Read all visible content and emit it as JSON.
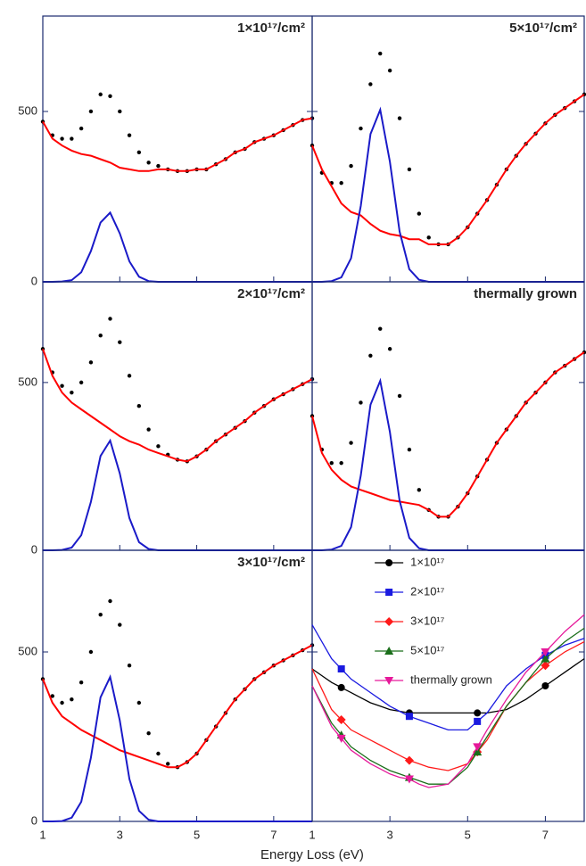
{
  "xlabel": "Energy Loss (eV)",
  "chart_data": [
    {
      "type": "line",
      "title": "1×10¹⁷/cm²",
      "x": [
        1,
        1.25,
        1.5,
        1.75,
        2,
        2.25,
        2.5,
        2.75,
        3,
        3.25,
        3.5,
        3.75,
        4,
        4.25,
        4.5,
        4.75,
        5,
        5.25,
        5.5,
        5.75,
        6,
        6.25,
        6.5,
        6.75,
        7,
        7.25,
        7.5,
        7.75,
        8
      ],
      "xlim": [
        1,
        8
      ],
      "xticks": [
        1,
        3,
        5,
        7
      ],
      "ylim": [
        0,
        780
      ],
      "yticks": [
        0,
        500
      ],
      "xtick_labels": false,
      "ytick_labels": true,
      "series": [
        {
          "color": "#000000",
          "style": "dots",
          "values": [
            470,
            430,
            420,
            420,
            450,
            500,
            550,
            545,
            500,
            430,
            380,
            350,
            340,
            330,
            325,
            325,
            330,
            330,
            345,
            360,
            380,
            390,
            410,
            420,
            430,
            445,
            460,
            475,
            480
          ]
        },
        {
          "color": "#ff0000",
          "style": "line",
          "values": [
            470,
            420,
            400,
            385,
            375,
            370,
            360,
            350,
            335,
            330,
            325,
            325,
            330,
            330,
            325,
            325,
            330,
            330,
            345,
            360,
            380,
            390,
            410,
            420,
            430,
            445,
            460,
            475,
            480
          ]
        },
        {
          "color": "#1a1ac8",
          "style": "line",
          "values": [
            0,
            0,
            1,
            5,
            28,
            90,
            174,
            203,
            142,
            60,
            15,
            2,
            0,
            0,
            0,
            0,
            0,
            0,
            0,
            0,
            0,
            0,
            0,
            0,
            0,
            0,
            0,
            0,
            0
          ]
        }
      ]
    },
    {
      "type": "line",
      "title": "5×10¹⁷/cm²",
      "x": [
        1,
        1.25,
        1.5,
        1.75,
        2,
        2.25,
        2.5,
        2.75,
        3,
        3.25,
        3.5,
        3.75,
        4,
        4.25,
        4.5,
        4.75,
        5,
        5.25,
        5.5,
        5.75,
        6,
        6.25,
        6.5,
        6.75,
        7,
        7.25,
        7.5,
        7.75,
        8
      ],
      "xlim": [
        1,
        8
      ],
      "xticks": [
        1,
        3,
        5,
        7
      ],
      "ylim": [
        0,
        780
      ],
      "yticks": [
        0,
        500
      ],
      "xtick_labels": false,
      "ytick_labels": false,
      "series": [
        {
          "color": "#000000",
          "style": "dots",
          "values": [
            400,
            320,
            290,
            290,
            340,
            450,
            580,
            670,
            620,
            480,
            330,
            200,
            130,
            110,
            110,
            130,
            160,
            200,
            240,
            285,
            330,
            370,
            405,
            435,
            465,
            490,
            510,
            530,
            550
          ]
        },
        {
          "color": "#ff0000",
          "style": "line",
          "values": [
            400,
            330,
            280,
            230,
            205,
            195,
            170,
            150,
            140,
            135,
            125,
            125,
            110,
            110,
            110,
            130,
            160,
            200,
            240,
            285,
            330,
            370,
            405,
            435,
            465,
            490,
            510,
            530,
            550
          ]
        },
        {
          "color": "#1a1ac8",
          "style": "line",
          "values": [
            0,
            0,
            2,
            13,
            69,
            223,
            434,
            505,
            353,
            148,
            37,
            6,
            0,
            0,
            0,
            0,
            0,
            0,
            0,
            0,
            0,
            0,
            0,
            0,
            0,
            0,
            0,
            0,
            0
          ]
        }
      ]
    },
    {
      "type": "line",
      "title": "2×10¹⁷/cm²",
      "x": [
        1,
        1.25,
        1.5,
        1.75,
        2,
        2.25,
        2.5,
        2.75,
        3,
        3.25,
        3.5,
        3.75,
        4,
        4.25,
        4.5,
        4.75,
        5,
        5.25,
        5.5,
        5.75,
        6,
        6.25,
        6.5,
        6.75,
        7,
        7.25,
        7.5,
        7.75,
        8
      ],
      "xlim": [
        1,
        8
      ],
      "xticks": [
        1,
        3,
        5,
        7
      ],
      "ylim": [
        0,
        800
      ],
      "yticks": [
        0,
        500
      ],
      "xtick_labels": false,
      "ytick_labels": true,
      "series": [
        {
          "color": "#000000",
          "style": "dots",
          "values": [
            600,
            530,
            490,
            470,
            500,
            560,
            640,
            690,
            620,
            520,
            430,
            360,
            310,
            285,
            270,
            265,
            280,
            300,
            325,
            345,
            365,
            385,
            410,
            430,
            450,
            465,
            480,
            495,
            510
          ]
        },
        {
          "color": "#ff0000",
          "style": "line",
          "values": [
            600,
            520,
            470,
            440,
            420,
            400,
            380,
            360,
            340,
            325,
            315,
            300,
            290,
            280,
            270,
            265,
            280,
            300,
            325,
            345,
            365,
            385,
            410,
            430,
            450,
            465,
            480,
            495,
            510
          ]
        },
        {
          "color": "#1a1ac8",
          "style": "line",
          "values": [
            0,
            0,
            1,
            8,
            45,
            144,
            281,
            327,
            229,
            96,
            24,
            4,
            0,
            0,
            0,
            0,
            0,
            0,
            0,
            0,
            0,
            0,
            0,
            0,
            0,
            0,
            0,
            0,
            0
          ]
        }
      ]
    },
    {
      "type": "line",
      "title": "thermally grown",
      "x": [
        1,
        1.25,
        1.5,
        1.75,
        2,
        2.25,
        2.5,
        2.75,
        3,
        3.25,
        3.5,
        3.75,
        4,
        4.25,
        4.5,
        4.75,
        5,
        5.25,
        5.5,
        5.75,
        6,
        6.25,
        6.5,
        6.75,
        7,
        7.25,
        7.5,
        7.75,
        8
      ],
      "xlim": [
        1,
        8
      ],
      "xticks": [
        1,
        3,
        5,
        7
      ],
      "ylim": [
        0,
        800
      ],
      "yticks": [
        0,
        500
      ],
      "xtick_labels": false,
      "ytick_labels": false,
      "series": [
        {
          "color": "#000000",
          "style": "dots",
          "values": [
            400,
            300,
            260,
            260,
            320,
            440,
            580,
            660,
            600,
            460,
            300,
            180,
            120,
            100,
            100,
            130,
            170,
            220,
            270,
            320,
            360,
            400,
            440,
            470,
            500,
            530,
            550,
            570,
            590
          ]
        },
        {
          "color": "#ff0000",
          "style": "line",
          "values": [
            400,
            290,
            240,
            210,
            190,
            180,
            170,
            160,
            150,
            145,
            140,
            135,
            120,
            100,
            100,
            130,
            170,
            220,
            270,
            320,
            360,
            400,
            440,
            470,
            500,
            530,
            550,
            570,
            590
          ]
        },
        {
          "color": "#1a1ac8",
          "style": "line",
          "values": [
            0,
            0,
            2,
            13,
            69,
            223,
            434,
            505,
            353,
            148,
            37,
            6,
            0,
            0,
            0,
            0,
            0,
            0,
            0,
            0,
            0,
            0,
            0,
            0,
            0,
            0,
            0,
            0,
            0
          ]
        }
      ]
    },
    {
      "type": "line",
      "title": "3×10¹⁷/cm²",
      "x": [
        1,
        1.25,
        1.5,
        1.75,
        2,
        2.25,
        2.5,
        2.75,
        3,
        3.25,
        3.5,
        3.75,
        4,
        4.25,
        4.5,
        4.75,
        5,
        5.25,
        5.5,
        5.75,
        6,
        6.25,
        6.5,
        6.75,
        7,
        7.25,
        7.5,
        7.75,
        8
      ],
      "xlim": [
        1,
        8
      ],
      "xticks": [
        1,
        3,
        5,
        7
      ],
      "ylim": [
        0,
        800
      ],
      "yticks": [
        0,
        500
      ],
      "xtick_labels": true,
      "ytick_labels": true,
      "series": [
        {
          "color": "#000000",
          "style": "dots",
          "values": [
            420,
            370,
            350,
            360,
            410,
            500,
            610,
            650,
            580,
            460,
            350,
            260,
            200,
            170,
            160,
            175,
            200,
            240,
            280,
            320,
            360,
            390,
            420,
            440,
            460,
            475,
            490,
            505,
            520
          ]
        },
        {
          "color": "#ff0000",
          "style": "line",
          "values": [
            420,
            350,
            310,
            290,
            270,
            255,
            240,
            225,
            210,
            200,
            190,
            180,
            170,
            160,
            160,
            175,
            200,
            240,
            280,
            320,
            360,
            390,
            420,
            440,
            460,
            475,
            490,
            505,
            520
          ]
        },
        {
          "color": "#1a1ac8",
          "style": "line",
          "values": [
            0,
            0,
            1,
            11,
            58,
            188,
            366,
            426,
            298,
            125,
            31,
            5,
            0,
            0,
            0,
            0,
            0,
            0,
            0,
            0,
            0,
            0,
            0,
            0,
            0,
            0,
            0,
            0,
            0
          ]
        }
      ]
    },
    {
      "type": "line",
      "x": [
        1,
        1.25,
        1.5,
        1.75,
        2,
        2.25,
        2.5,
        2.75,
        3,
        3.25,
        3.5,
        3.75,
        4,
        4.25,
        4.5,
        4.75,
        5,
        5.25,
        5.5,
        5.75,
        6,
        6.25,
        6.5,
        6.75,
        7,
        7.25,
        7.5,
        7.75,
        8
      ],
      "xlim": [
        1,
        8
      ],
      "xticks": [
        1,
        3,
        5,
        7
      ],
      "ylim": [
        0,
        800
      ],
      "yticks": [
        0,
        500
      ],
      "xtick_labels": true,
      "ytick_labels": false,
      "legend": "upper center",
      "series": [
        {
          "name": "1×10¹⁷",
          "color": "#000000",
          "style": "line",
          "marker": "circle",
          "values": [
            450,
            430,
            410,
            395,
            380,
            365,
            350,
            340,
            330,
            325,
            320,
            320,
            320,
            320,
            320,
            320,
            320,
            320,
            320,
            325,
            330,
            345,
            360,
            380,
            400,
            420,
            440,
            460,
            480
          ]
        },
        {
          "name": "2×10¹⁷",
          "color": "#1a1ae0",
          "style": "line",
          "marker": "square",
          "values": [
            580,
            530,
            480,
            450,
            420,
            400,
            380,
            360,
            340,
            325,
            310,
            300,
            290,
            280,
            270,
            270,
            270,
            295,
            320,
            360,
            400,
            425,
            450,
            470,
            490,
            505,
            520,
            530,
            540
          ]
        },
        {
          "name": "3×10¹⁷",
          "color": "#ff1a1a",
          "style": "line",
          "marker": "diamond",
          "values": [
            450,
            390,
            330,
            300,
            270,
            255,
            240,
            225,
            210,
            195,
            180,
            170,
            160,
            155,
            150,
            160,
            170,
            205,
            240,
            290,
            340,
            375,
            410,
            435,
            460,
            480,
            500,
            515,
            530
          ]
        },
        {
          "name": "5×10¹⁷",
          "color": "#1a6e1a",
          "style": "line",
          "marker": "triangle-up",
          "values": [
            400,
            345,
            290,
            255,
            220,
            200,
            180,
            165,
            150,
            140,
            130,
            120,
            110,
            110,
            110,
            135,
            160,
            205,
            250,
            295,
            340,
            375,
            410,
            445,
            480,
            505,
            530,
            550,
            570
          ]
        },
        {
          "name": "thermally grown",
          "color": "#e6199a",
          "style": "line",
          "marker": "triangle-down",
          "values": [
            400,
            340,
            280,
            245,
            210,
            190,
            170,
            155,
            140,
            130,
            125,
            110,
            100,
            105,
            110,
            140,
            170,
            220,
            270,
            315,
            360,
            400,
            440,
            470,
            500,
            530,
            560,
            585,
            610
          ]
        }
      ]
    }
  ]
}
